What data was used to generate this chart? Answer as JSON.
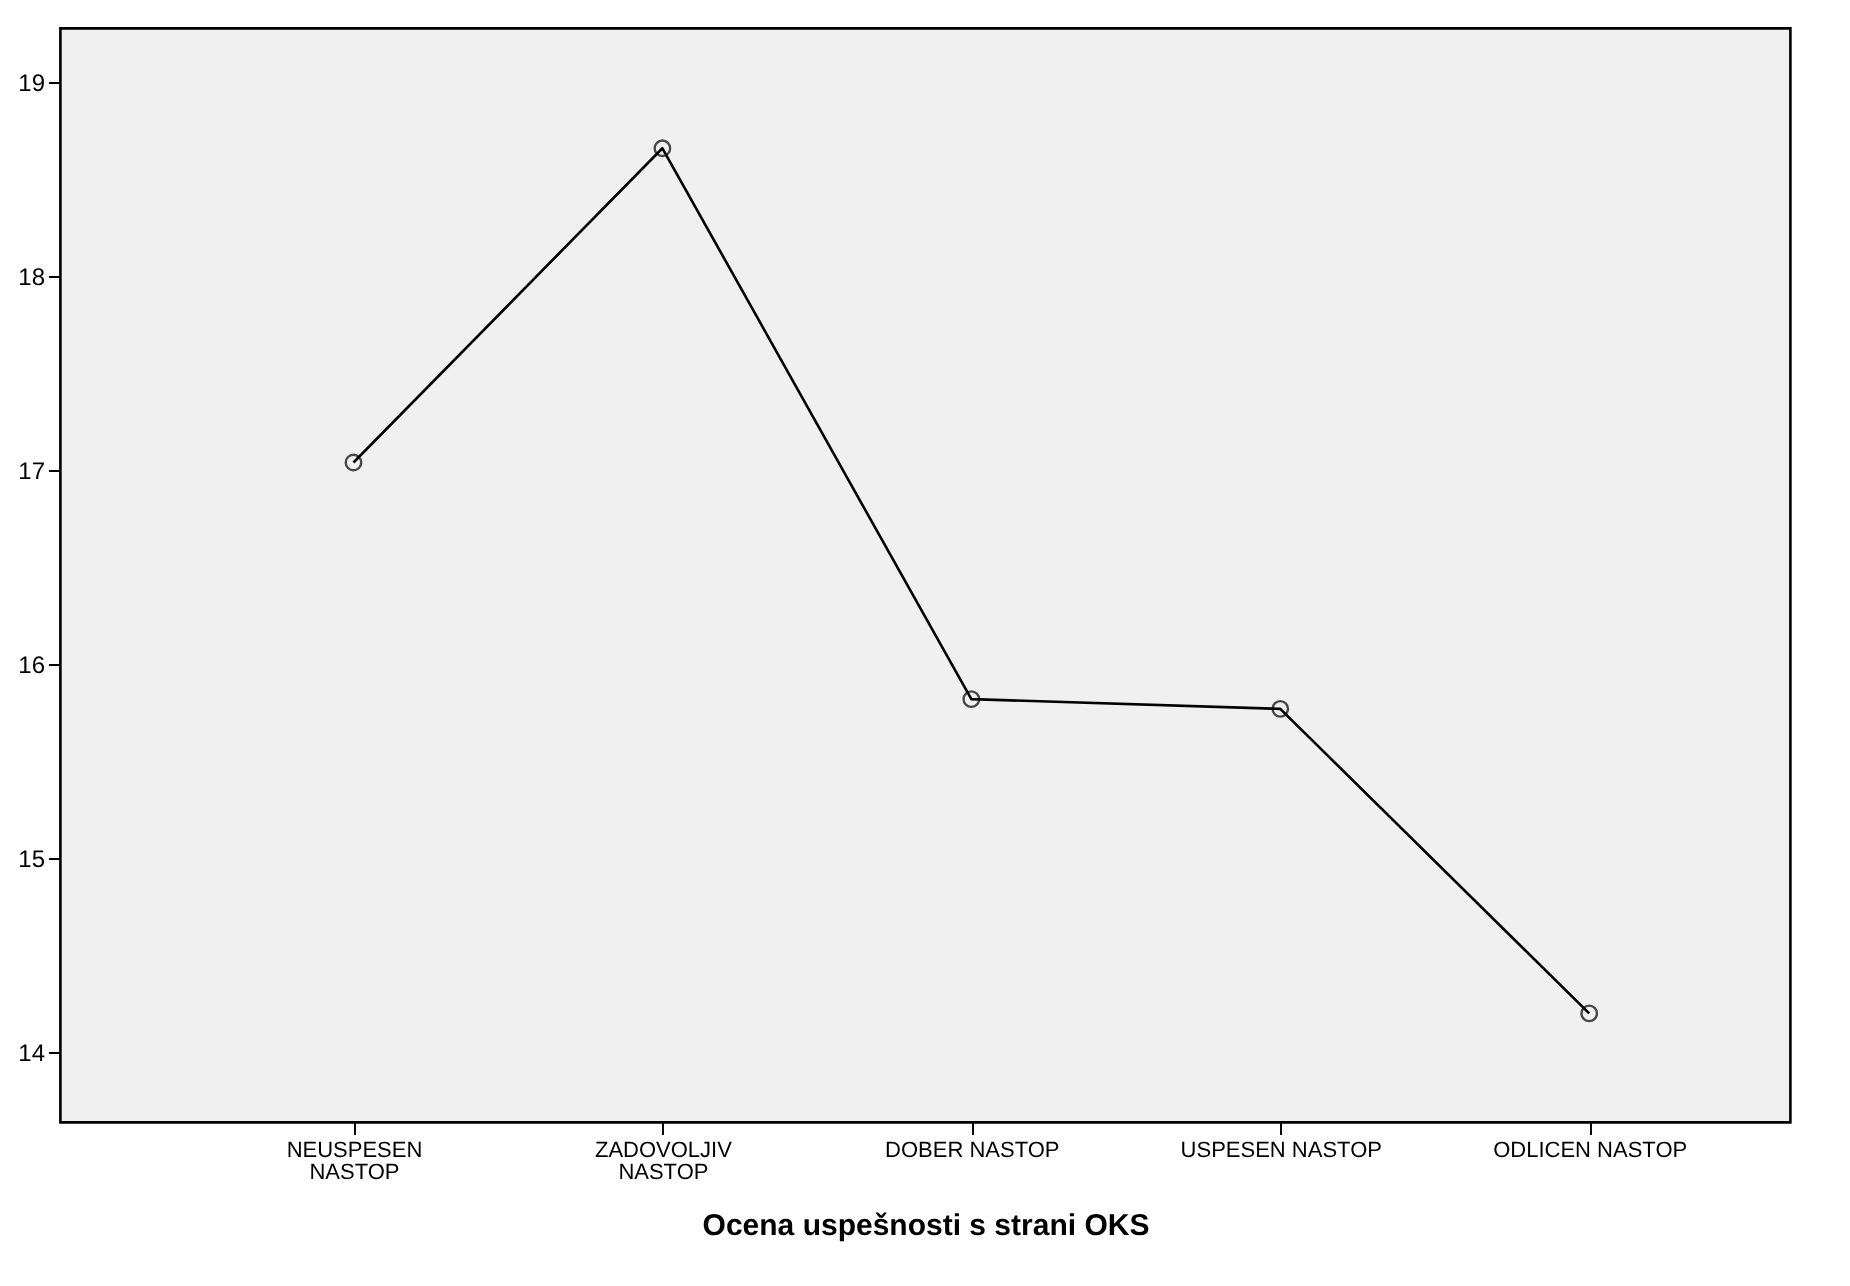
{
  "chart_data": {
    "type": "line",
    "xlabel": "Ocena uspešnosti s strani OKS",
    "categories": [
      "NEUSPESEN NASTOP",
      "ZADOVOLJIV NASTOP",
      "DOBER NASTOP",
      "USPESEN NASTOP",
      "ODLICEN NASTOP"
    ],
    "series": [
      {
        "color": "#000000",
        "values": [
          17.04,
          18.66,
          15.82,
          15.77,
          14.2
        ]
      }
    ],
    "ylim": [
      13.64,
      19.28
    ],
    "yticks": [
      14,
      15,
      16,
      17,
      18,
      19
    ],
    "grid": false,
    "legend": false,
    "marker": "circle",
    "line_style": "solid"
  }
}
